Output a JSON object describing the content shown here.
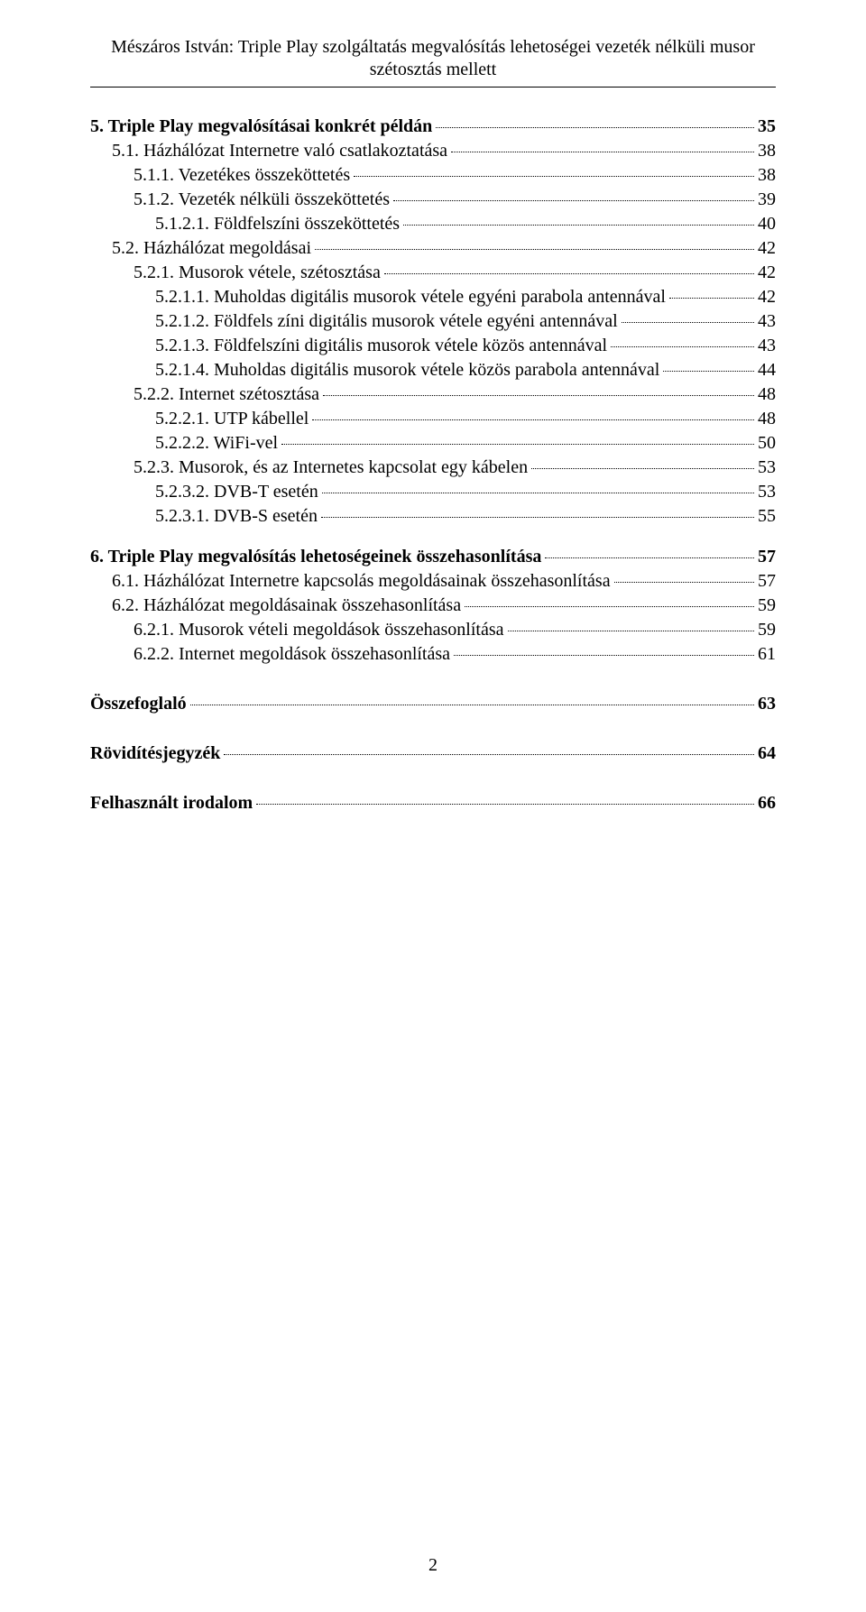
{
  "header": {
    "line1": "Mészáros István: Triple Play szolgáltatás megvalósítás lehetoségei vezeték nélküli musor",
    "line2": "szétosztás mellett"
  },
  "page_number": "2",
  "groups": [
    {
      "gap": "none",
      "entries": [
        {
          "indent": 0,
          "bold": true,
          "text": "5. Triple Play megvalósításai konkrét példán",
          "page": "35"
        },
        {
          "indent": 1,
          "bold": false,
          "text": "5.1. Házhálózat Internetre való csatlakoztatása",
          "page": "38"
        },
        {
          "indent": 2,
          "bold": false,
          "text": "5.1.1. Vezetékes összeköttetés",
          "page": "38"
        },
        {
          "indent": 2,
          "bold": false,
          "text": "5.1.2. Vezeték nélküli összeköttetés",
          "page": "39"
        },
        {
          "indent": 3,
          "bold": false,
          "text": "5.1.2.1. Földfelszíni összeköttetés",
          "page": "40"
        },
        {
          "indent": 1,
          "bold": false,
          "text": "5.2. Házhálózat megoldásai",
          "page": "42"
        },
        {
          "indent": 2,
          "bold": false,
          "text": "5.2.1. Musorok vétele, szétosztása",
          "page": "42"
        },
        {
          "indent": 3,
          "bold": false,
          "text": "5.2.1.1. Muholdas digitális musorok vétele egyéni parabola antennával",
          "page": "42"
        },
        {
          "indent": 3,
          "bold": false,
          "text": "5.2.1.2. Földfels zíni digitális musorok vétele egyéni antennával",
          "page": "43"
        },
        {
          "indent": 3,
          "bold": false,
          "text": "5.2.1.3. Földfelszíni digitális musorok vétele közös antennával",
          "page": "43"
        },
        {
          "indent": 3,
          "bold": false,
          "text": "5.2.1.4. Muholdas digitális musorok vétele közös parabola antennával",
          "page": "44"
        },
        {
          "indent": 2,
          "bold": false,
          "text": "5.2.2. Internet szétosztása",
          "page": "48"
        },
        {
          "indent": 3,
          "bold": false,
          "text": "5.2.2.1. UTP kábellel",
          "page": "48"
        },
        {
          "indent": 3,
          "bold": false,
          "text": "5.2.2.2. WiFi-vel",
          "page": "50"
        },
        {
          "indent": 2,
          "bold": false,
          "text": "5.2.3. Musorok, és az Internetes kapcsolat egy kábelen",
          "page": "53"
        },
        {
          "indent": 3,
          "bold": false,
          "text": "5.2.3.2. DVB-T esetén",
          "page": "53"
        },
        {
          "indent": 3,
          "bold": false,
          "text": "5.2.3.1. DVB-S esetén",
          "page": "55"
        }
      ]
    },
    {
      "gap": "section",
      "entries": [
        {
          "indent": 0,
          "bold": true,
          "text": "6. Triple Play megvalósítás lehetoségeinek összehasonlítása",
          "page": "57"
        },
        {
          "indent": 1,
          "bold": false,
          "text": "6.1. Házhálózat Internetre kapcsolás megoldásainak összehasonlítása",
          "page": "57"
        },
        {
          "indent": 1,
          "bold": false,
          "text": "6.2. Házhálózat megoldásainak összehasonlítása",
          "page": "59"
        },
        {
          "indent": 2,
          "bold": false,
          "text": "6.2.1. Musorok vételi megoldások összehasonlítása",
          "page": "59"
        },
        {
          "indent": 2,
          "bold": false,
          "text": "6.2.2. Internet megoldások összehasonlítása",
          "page": "61"
        }
      ]
    },
    {
      "gap": "large",
      "entries": [
        {
          "indent": 0,
          "bold": true,
          "text": "Összefoglaló",
          "page": "63"
        }
      ]
    },
    {
      "gap": "large",
      "entries": [
        {
          "indent": 0,
          "bold": true,
          "text": "Rövidítésjegyzék",
          "page": "64"
        }
      ]
    },
    {
      "gap": "large",
      "entries": [
        {
          "indent": 0,
          "bold": true,
          "text": "Felhasznált irodalom",
          "page": "66"
        }
      ]
    }
  ]
}
